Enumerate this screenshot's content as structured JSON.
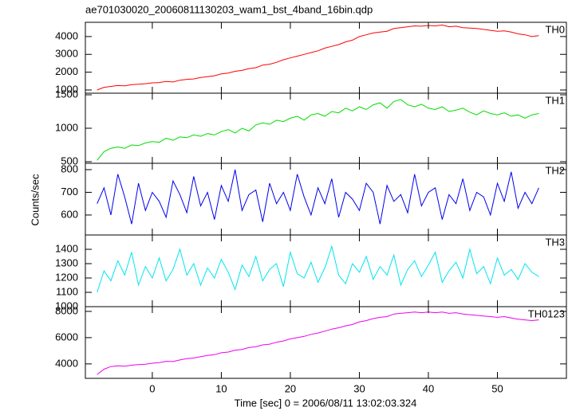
{
  "chart_data": {
    "type": "line",
    "title": "ae701030020_20060811130203_wam1_bst_4band_16bin.qdp",
    "xlabel": "Time [sec] 0 = 2006/08/11 13:02:03.324",
    "ylabel": "Counts/sec",
    "xlim": [
      -9.7,
      60
    ],
    "xticks": [
      0,
      10,
      20,
      30,
      40,
      50
    ],
    "x": [
      -8,
      -7,
      -6,
      -5,
      -4,
      -3,
      -2,
      -1,
      0,
      1,
      2,
      3,
      4,
      5,
      6,
      7,
      8,
      9,
      10,
      11,
      12,
      13,
      14,
      15,
      16,
      17,
      18,
      19,
      20,
      21,
      22,
      23,
      24,
      25,
      26,
      27,
      28,
      29,
      30,
      31,
      32,
      33,
      34,
      35,
      36,
      37,
      38,
      39,
      40,
      41,
      42,
      43,
      44,
      45,
      46,
      47,
      48,
      49,
      50,
      51,
      52,
      53,
      54,
      55,
      56
    ],
    "series": [
      {
        "name": "TH0",
        "color": "#ff0000",
        "ylim": [
          820,
          4800
        ],
        "yticks": [
          1000,
          2000,
          3000,
          4000
        ],
        "values": [
          1000,
          1150,
          1200,
          1250,
          1230,
          1300,
          1320,
          1350,
          1400,
          1420,
          1480,
          1450,
          1550,
          1600,
          1620,
          1700,
          1750,
          1800,
          1900,
          1950,
          2050,
          2100,
          2200,
          2250,
          2400,
          2450,
          2550,
          2700,
          2800,
          2900,
          3000,
          3100,
          3200,
          3350,
          3450,
          3550,
          3700,
          3800,
          4000,
          4100,
          4200,
          4250,
          4300,
          4450,
          4500,
          4550,
          4600,
          4580,
          4620,
          4600,
          4650,
          4550,
          4580,
          4500,
          4480,
          4450,
          4400,
          4350,
          4300,
          4320,
          4250,
          4150,
          4100,
          4000,
          4050
        ]
      },
      {
        "name": "TH1",
        "color": "#00dd00",
        "ylim": [
          476,
          1524
        ],
        "yticks": [
          500,
          1000,
          1500
        ],
        "values": [
          520,
          650,
          700,
          720,
          700,
          750,
          740,
          780,
          800,
          790,
          850,
          820,
          870,
          860,
          900,
          880,
          920,
          900,
          950,
          980,
          930,
          1000,
          960,
          1050,
          1080,
          1060,
          1120,
          1100,
          1150,
          1180,
          1120,
          1200,
          1220,
          1180,
          1250,
          1230,
          1300,
          1260,
          1320,
          1280,
          1350,
          1380,
          1300,
          1400,
          1430,
          1350,
          1320,
          1360,
          1300,
          1280,
          1320,
          1250,
          1270,
          1300,
          1240,
          1200,
          1260,
          1220,
          1200,
          1230,
          1180,
          1200,
          1150,
          1200,
          1220
        ]
      },
      {
        "name": "TH2",
        "color": "#0000ee",
        "ylim": [
          512,
          828
        ],
        "yticks": [
          600,
          700,
          800
        ],
        "values": [
          650,
          720,
          600,
          780,
          680,
          560,
          740,
          620,
          700,
          660,
          590,
          750,
          690,
          610,
          770,
          640,
          700,
          580,
          730,
          660,
          800,
          620,
          690,
          710,
          570,
          740,
          650,
          700,
          620,
          780,
          680,
          600,
          720,
          650,
          760,
          590,
          700,
          670,
          620,
          740,
          700,
          560,
          730,
          660,
          690,
          610,
          780,
          640,
          700,
          720,
          580,
          690,
          650,
          760,
          620,
          700,
          680,
          600,
          740,
          660,
          790,
          630,
          700,
          650,
          720
        ]
      },
      {
        "name": "TH3",
        "color": "#00e5ee",
        "ylim": [
          1000,
          1500
        ],
        "yticks": [
          1000,
          1100,
          1200,
          1300,
          1400
        ],
        "values": [
          1100,
          1250,
          1180,
          1320,
          1220,
          1380,
          1150,
          1280,
          1200,
          1340,
          1180,
          1260,
          1400,
          1220,
          1300,
          1150,
          1270,
          1200,
          1330,
          1240,
          1120,
          1290,
          1210,
          1350,
          1180,
          1260,
          1300,
          1140,
          1380,
          1230,
          1200,
          1310,
          1170,
          1270,
          1420,
          1220,
          1160,
          1300,
          1240,
          1350,
          1190,
          1280,
          1220,
          1360,
          1150,
          1260,
          1320,
          1210,
          1290,
          1380,
          1170,
          1250,
          1310,
          1200,
          1400,
          1230,
          1280,
          1160,
          1340,
          1220,
          1260,
          1190,
          1300,
          1240,
          1210
        ]
      },
      {
        "name": "TH0123",
        "color": "#ee00ee",
        "ylim": [
          2900,
          8360
        ],
        "yticks": [
          4000,
          6000,
          8000
        ],
        "values": [
          3200,
          3600,
          3800,
          3850,
          3820,
          3900,
          3950,
          3980,
          4050,
          4100,
          4200,
          4180,
          4300,
          4400,
          4450,
          4550,
          4650,
          4700,
          4850,
          4900,
          5050,
          5100,
          5250,
          5300,
          5450,
          5500,
          5650,
          5750,
          5900,
          6000,
          6100,
          6250,
          6350,
          6500,
          6650,
          6750,
          6900,
          7000,
          7200,
          7300,
          7450,
          7550,
          7600,
          7800,
          7850,
          7900,
          7950,
          7900,
          7950,
          7900,
          7950,
          7850,
          7900,
          7800,
          7750,
          7700,
          7650,
          7600,
          7550,
          7600,
          7500,
          7400,
          7350,
          7300,
          7350
        ]
      }
    ]
  }
}
